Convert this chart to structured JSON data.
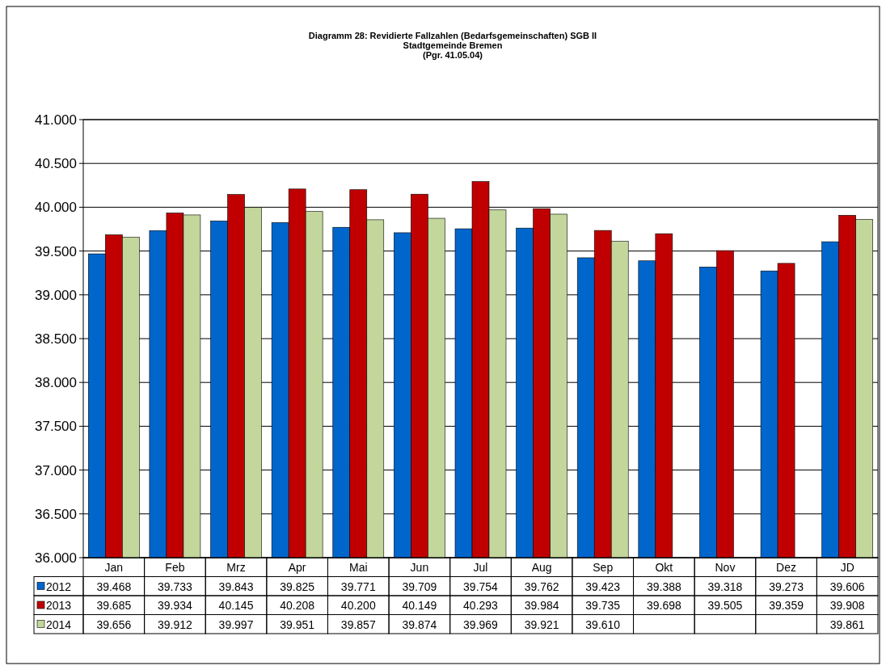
{
  "chart_data": {
    "type": "bar",
    "title": "Diagramm 28: Revidierte Fallzahlen (Bedarfsgemeinschaften) SGB II\nStadtgemeinde Bremen\n(Pgr. 41.05.04)",
    "categories": [
      "Jan",
      "Feb",
      "Mrz",
      "Apr",
      "Mai",
      "Jun",
      "Jul",
      "Aug",
      "Sep",
      "Okt",
      "Nov",
      "Dez",
      "JD"
    ],
    "series": [
      {
        "name": "2012",
        "color": "#0066cc",
        "values": [
          39468,
          39733,
          39843,
          39825,
          39771,
          39709,
          39754,
          39762,
          39423,
          39388,
          39318,
          39273,
          39606
        ],
        "value_labels": [
          "39.468",
          "39.733",
          "39.843",
          "39.825",
          "39.771",
          "39.709",
          "39.754",
          "39.762",
          "39.423",
          "39.388",
          "39.318",
          "39.273",
          "39.606"
        ]
      },
      {
        "name": "2013",
        "color": "#c00000",
        "values": [
          39685,
          39934,
          40145,
          40208,
          40200,
          40149,
          40293,
          39984,
          39735,
          39698,
          39505,
          39359,
          39908
        ],
        "value_labels": [
          "39.685",
          "39.934",
          "40.145",
          "40.208",
          "40.200",
          "40.149",
          "40.293",
          "39.984",
          "39.735",
          "39.698",
          "39.505",
          "39.359",
          "39.908"
        ]
      },
      {
        "name": "2014",
        "color": "#c3d69b",
        "values": [
          39656,
          39912,
          39997,
          39951,
          39857,
          39874,
          39969,
          39921,
          39610,
          null,
          null,
          null,
          39861
        ],
        "value_labels": [
          "39.656",
          "39.912",
          "39.997",
          "39.951",
          "39.857",
          "39.874",
          "39.969",
          "39.921",
          "39.610",
          null,
          null,
          null,
          "39.861"
        ]
      }
    ],
    "ylim": [
      36000,
      41000
    ],
    "yticks": [
      {
        "value": 36000,
        "label": "36.000"
      },
      {
        "value": 36500,
        "label": "36.500"
      },
      {
        "value": 37000,
        "label": "37.000"
      },
      {
        "value": 37500,
        "label": "37.500"
      },
      {
        "value": 38000,
        "label": "38.000"
      },
      {
        "value": 38500,
        "label": "38.500"
      },
      {
        "value": 39000,
        "label": "39.000"
      },
      {
        "value": 39500,
        "label": "39.500"
      },
      {
        "value": 40000,
        "label": "40.000"
      },
      {
        "value": 40500,
        "label": "40.500"
      },
      {
        "value": 41000,
        "label": "41.000"
      }
    ],
    "grid": "y",
    "legend": "bottom"
  }
}
